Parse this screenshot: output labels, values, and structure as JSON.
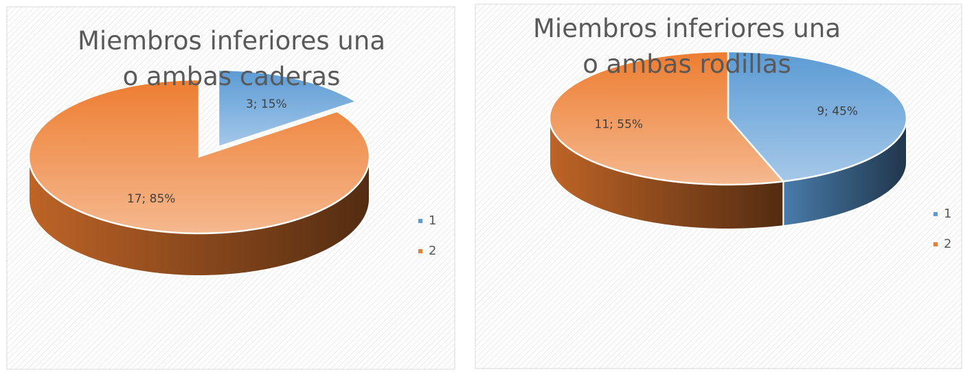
{
  "chart_data": [
    {
      "type": "pie",
      "title": "Miembros inferiores una o ambas caderas",
      "categories": [
        "1",
        "2"
      ],
      "values": [
        3,
        17
      ],
      "value_labels": [
        "3; 15%",
        "17; 85%"
      ],
      "colors": [
        "#5b9bd5",
        "#ed7d31"
      ],
      "legend": "right"
    },
    {
      "type": "pie",
      "title": "Miembros inferiores una o ambas rodillas",
      "categories": [
        "1",
        "2"
      ],
      "values": [
        9,
        11
      ],
      "value_labels": [
        "9; 45%",
        "11; 55%"
      ],
      "colors": [
        "#5b9bd5",
        "#ed7d31"
      ],
      "legend": "right"
    }
  ]
}
